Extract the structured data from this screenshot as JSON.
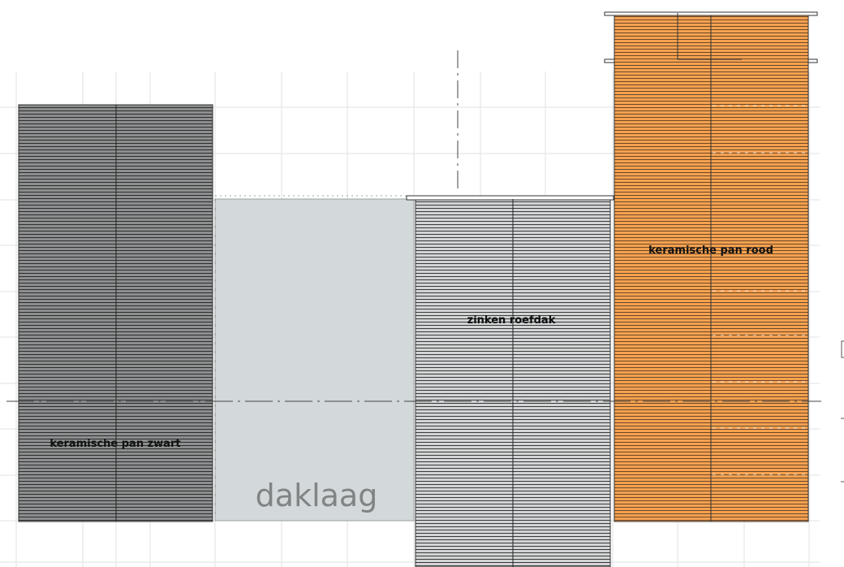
{
  "drawing": {
    "panels": [
      {
        "label": "keramische pan zwart",
        "fill": "#8c8e8f",
        "pattern": "hatch"
      },
      {
        "label": "",
        "fill": "#d3d8da",
        "pattern": "solid"
      },
      {
        "label": "zinken roefdak",
        "fill": "#d2d4d5",
        "pattern": "hatch"
      },
      {
        "label": "keramische pan rood",
        "fill": "#f6a14f",
        "pattern": "hatch"
      }
    ],
    "caption": "daklaag",
    "colors": {
      "grid": "#e2e2e2",
      "outline": "#333333",
      "hatch_line": "#3a3a3a",
      "caption": "#808484"
    }
  }
}
